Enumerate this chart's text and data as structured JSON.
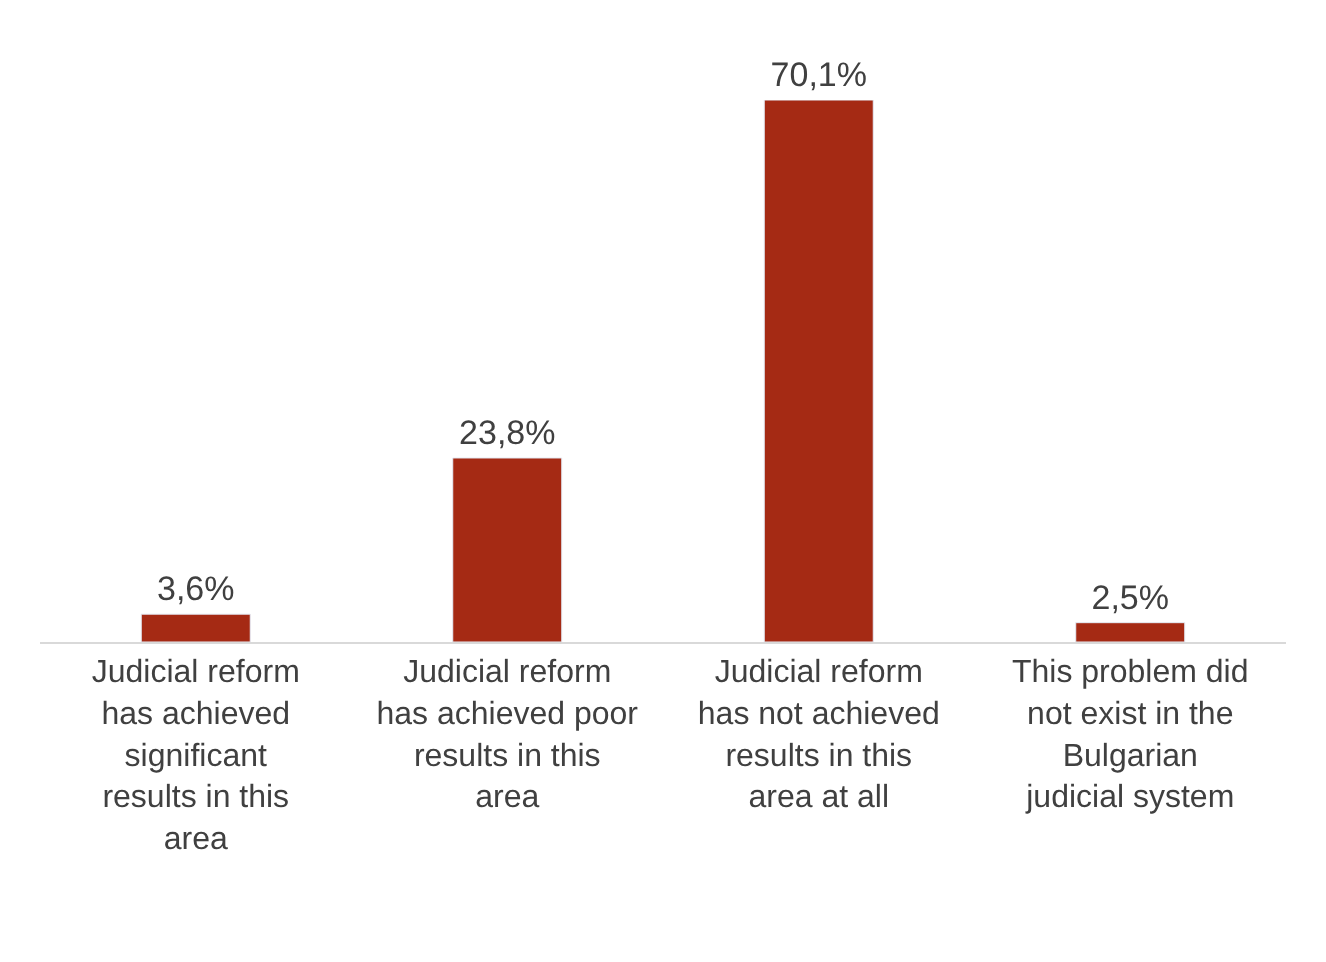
{
  "chart_data": {
    "type": "bar",
    "categories": [
      "Judicial reform has achieved significant results in this area",
      "Judicial reform has achieved poor results in this area",
      "Judicial reform has not achieved results in this area at all",
      "This problem did not exist in the Bulgarian judicial system"
    ],
    "values": [
      3.6,
      23.8,
      70.1,
      2.5
    ],
    "value_labels": [
      "3,6%",
      "23,8%",
      "70,1%",
      "2,5%"
    ],
    "color": "#a52a14"
  }
}
